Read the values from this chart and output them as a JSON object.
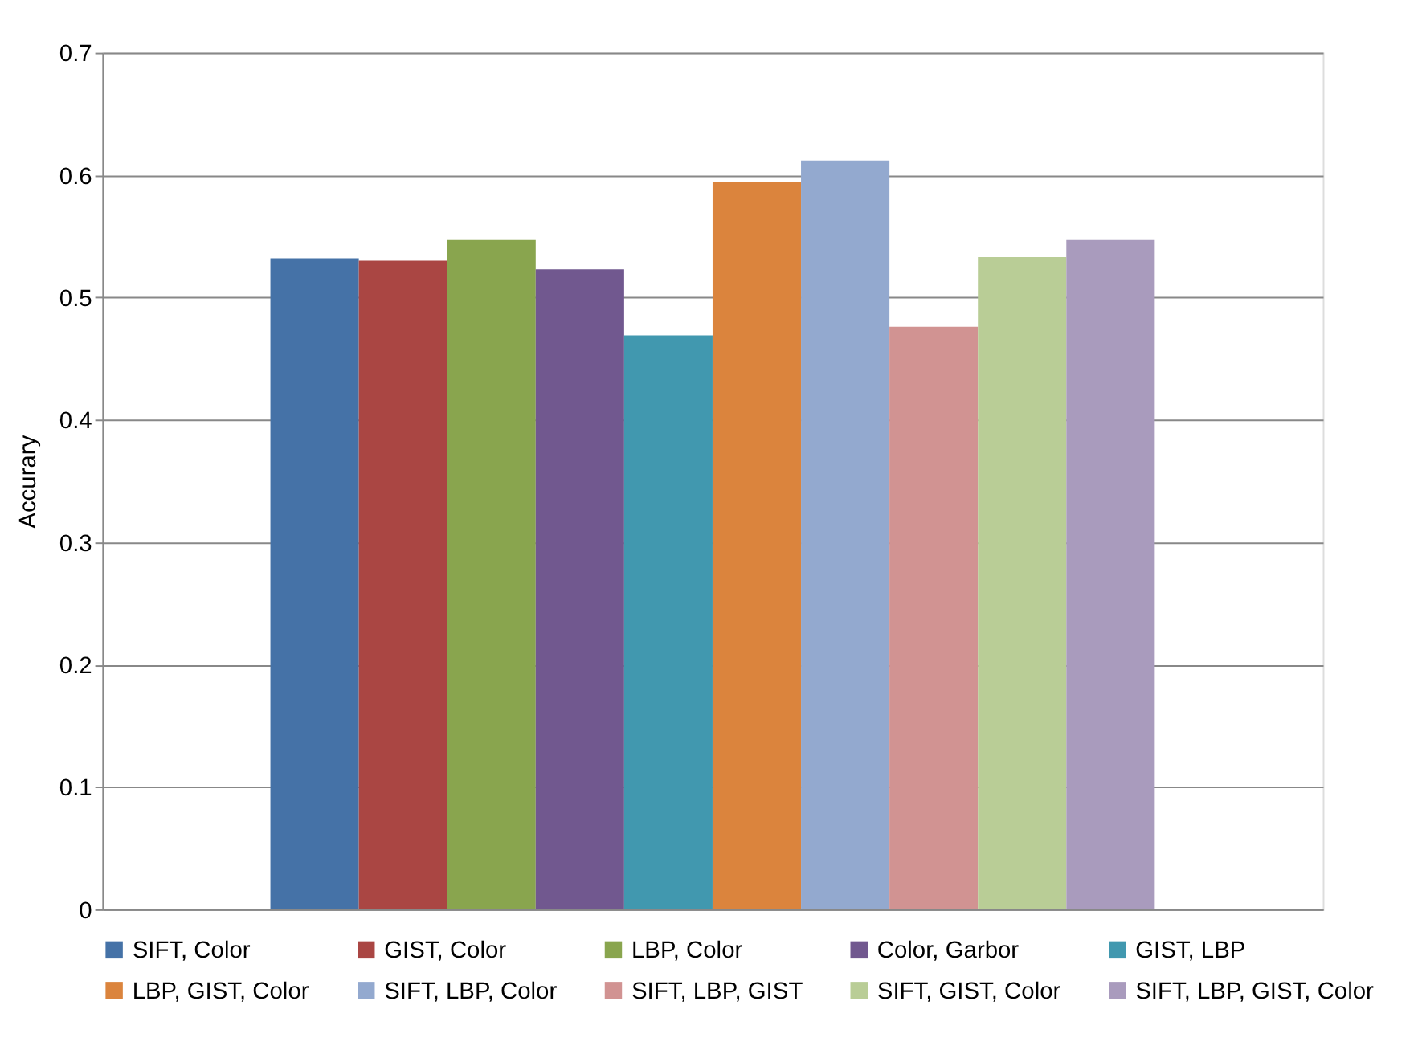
{
  "chart_data": {
    "type": "bar",
    "ylabel": "Accurary",
    "categories": [
      null
    ],
    "series": [
      {
        "name": "SIFT, Color",
        "color": "#4572a7",
        "values": [
          0.532
        ]
      },
      {
        "name": "GIST, Color",
        "color": "#aa4643",
        "values": [
          0.53
        ]
      },
      {
        "name": "LBP, Color",
        "color": "#89a54e",
        "values": [
          0.547
        ]
      },
      {
        "name": "Color, Garbor",
        "color": "#71588f",
        "values": [
          0.523
        ]
      },
      {
        "name": "GIST, LBP",
        "color": "#4198af",
        "values": [
          0.469
        ]
      },
      {
        "name": "LBP, GIST, Color",
        "color": "#db843d",
        "values": [
          0.594
        ]
      },
      {
        "name": "SIFT, LBP, Color",
        "color": "#93a9cf",
        "values": [
          0.612
        ]
      },
      {
        "name": "SIFT, LBP, GIST",
        "color": "#d19392",
        "values": [
          0.476
        ]
      },
      {
        "name": "SIFT, GIST, Color",
        "color": "#b9cd96",
        "values": [
          0.533
        ]
      },
      {
        "name": "SIFT, LBP, GIST, Color",
        "color": "#a99bbd",
        "values": [
          0.547
        ]
      }
    ],
    "ylim": [
      0,
      0.7
    ],
    "yticks": [
      0,
      0.1,
      0.2,
      0.3,
      0.4,
      0.5,
      0.6,
      0.7
    ],
    "grid": "y",
    "legend": "bottom",
    "tick_labels": "y"
  }
}
